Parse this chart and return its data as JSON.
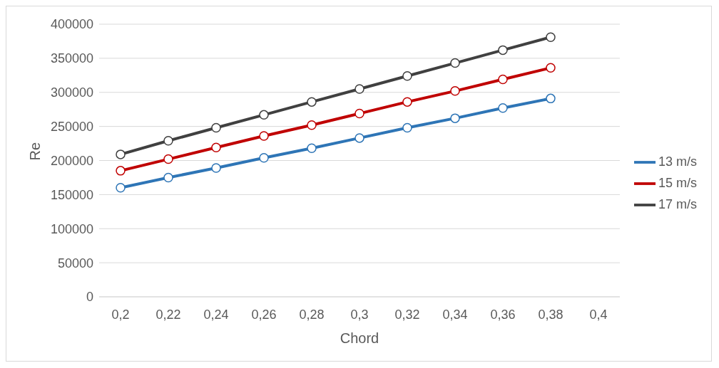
{
  "chart_data": {
    "type": "line",
    "xlabel": "Chord",
    "ylabel": "Re",
    "categories": [
      "0,2",
      "0,22",
      "0,24",
      "0,26",
      "0,28",
      "0,3",
      "0,32",
      "0,34",
      "0,36",
      "0,38",
      "0,4"
    ],
    "series": [
      {
        "name": "13 m/s",
        "color": "#2e75b6",
        "values": [
          160000,
          175000,
          189000,
          204000,
          218000,
          233000,
          248000,
          262000,
          277000,
          291000,
          null
        ]
      },
      {
        "name": "15 m/s",
        "color": "#c00000",
        "values": [
          185000,
          202000,
          219000,
          236000,
          252000,
          269000,
          286000,
          302000,
          319000,
          336000,
          null
        ]
      },
      {
        "name": "17 m/s",
        "color": "#404040",
        "values": [
          209000,
          229000,
          248000,
          267000,
          286000,
          305000,
          324000,
          343000,
          362000,
          381000,
          null
        ]
      }
    ],
    "ylim": [
      0,
      400000
    ],
    "yticks": [
      0,
      50000,
      100000,
      150000,
      200000,
      250000,
      300000,
      350000,
      400000
    ],
    "grid": "y",
    "legend": "right",
    "marker": "circle",
    "line_style": "solid"
  }
}
